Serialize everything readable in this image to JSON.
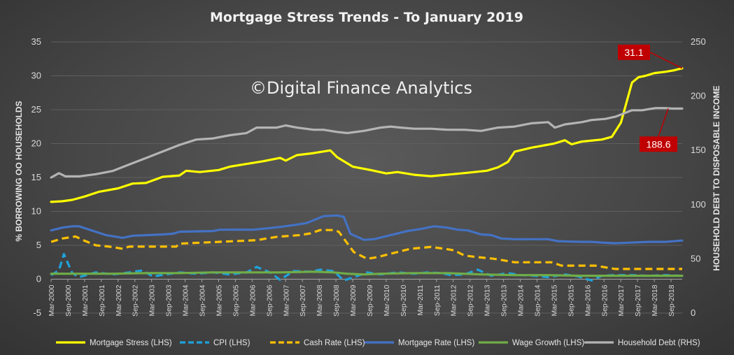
{
  "chart_data": {
    "type": "line",
    "title": "Mortgage Stress Trends - To January 2019",
    "watermark": "©Digital Finance Analytics",
    "ylabel_left": "% BORROWING OO HOUSEHOLDS",
    "ylabel_right": "HOUSEHOLD DEBT TO DISPOSABLE INCOME",
    "ylim_left": [
      -5,
      35
    ],
    "ylim_right": [
      0,
      250
    ],
    "yticks_left": [
      -5,
      0,
      5,
      10,
      15,
      20,
      25,
      30,
      35
    ],
    "yticks_right": [
      0,
      50,
      100,
      150,
      200,
      250
    ],
    "x_start": 2000.167,
    "x_end": 2019.0,
    "x_ticks": [
      "Mar-2000",
      "Sep-2000",
      "Mar-2001",
      "Sep-2001",
      "Mar-2002",
      "Sep-2002",
      "Mar-2003",
      "Sep-2003",
      "Mar-2004",
      "Sep-2004",
      "Mar-2005",
      "Sep-2005",
      "Mar-2006",
      "Sep-2006",
      "Mar-2007",
      "Sep-2007",
      "Mar-2008",
      "Sep-2008",
      "Mar-2009",
      "Sep-2009",
      "Mar-2010",
      "Sep-2010",
      "Mar-2011",
      "Sep-2011",
      "Mar-2012",
      "Sep-2012",
      "Mar-2013",
      "Sep-2013",
      "Mar-2014",
      "Sep-2014",
      "Mar-2015",
      "Sep-2015",
      "Mar-2016",
      "Sep-2016",
      "Mar-2017",
      "Sep-2017",
      "Mar-2018",
      "Sep-2018"
    ],
    "grid": true,
    "legend_position": "bottom",
    "series": [
      {
        "name": "Mortgage Stress (LHS)",
        "axis": "left",
        "color": "#ffff00",
        "dash": "solid",
        "x": [
          2000.17,
          2000.5,
          2000.8,
          2001.17,
          2001.6,
          2002.17,
          2002.6,
          2003.0,
          2003.5,
          2004.0,
          2004.2,
          2004.6,
          2005.17,
          2005.5,
          2006.0,
          2006.5,
          2007.0,
          2007.17,
          2007.5,
          2008.0,
          2008.5,
          2008.7,
          2009.17,
          2009.7,
          2010.17,
          2010.5,
          2011.0,
          2011.5,
          2012.17,
          2012.6,
          2013.17,
          2013.5,
          2013.8,
          2014.0,
          2014.5,
          2015.17,
          2015.5,
          2015.7,
          2016.0,
          2016.6,
          2016.9,
          2017.17,
          2017.5,
          2017.7,
          2017.9,
          2018.17,
          2018.5,
          2018.75,
          2018.9,
          2019.0
        ],
        "values": [
          11.4,
          11.5,
          11.7,
          12.2,
          12.9,
          13.4,
          14.1,
          14.2,
          15.1,
          15.3,
          16.0,
          15.8,
          16.1,
          16.6,
          17.0,
          17.4,
          17.9,
          17.5,
          18.3,
          18.6,
          19.0,
          18.0,
          16.6,
          16.1,
          15.6,
          15.8,
          15.4,
          15.2,
          15.5,
          15.7,
          16.0,
          16.5,
          17.3,
          18.8,
          19.4,
          20.0,
          20.5,
          19.9,
          20.3,
          20.6,
          21.0,
          23.1,
          29.0,
          29.8,
          30.0,
          30.4,
          30.6,
          30.8,
          31.0,
          31.1
        ]
      },
      {
        "name": "CPI (LHS)",
        "axis": "left",
        "color": "#1fa2dc",
        "dash": "dash",
        "x": [
          2000.17,
          2000.4,
          2000.55,
          2000.8,
          2001.0,
          2001.5,
          2002.0,
          2002.5,
          2002.9,
          2003.2,
          2003.6,
          2004.0,
          2004.5,
          2005.0,
          2005.5,
          2006.0,
          2006.3,
          2006.7,
          2007.0,
          2007.4,
          2007.9,
          2008.2,
          2008.6,
          2008.9,
          2009.2,
          2009.6,
          2010.0,
          2010.5,
          2011.0,
          2011.4,
          2011.8,
          2012.1,
          2012.5,
          2012.9,
          2013.3,
          2013.8,
          2014.2,
          2014.6,
          2015.0,
          2015.5,
          2015.9,
          2016.3,
          2016.6,
          2017.0,
          2017.5,
          2018.0,
          2018.5,
          2019.0
        ],
        "values": [
          0.6,
          1.3,
          3.7,
          0.9,
          0.3,
          1.0,
          0.7,
          1.0,
          1.3,
          0.4,
          0.7,
          1.0,
          0.8,
          1.0,
          0.7,
          1.0,
          1.8,
          1.0,
          -0.1,
          1.2,
          1.1,
          1.4,
          1.2,
          -0.2,
          0.3,
          1.0,
          0.7,
          1.0,
          0.8,
          1.0,
          0.9,
          0.6,
          0.7,
          1.4,
          0.5,
          0.9,
          0.6,
          0.5,
          0.3,
          0.7,
          0.4,
          -0.2,
          0.5,
          0.6,
          0.6,
          0.5,
          0.6,
          0.5
        ]
      },
      {
        "name": "Cash Rate (LHS)",
        "axis": "left",
        "color": "#ffc000",
        "dash": "dash",
        "x": [
          2000.17,
          2000.5,
          2000.9,
          2001.1,
          2001.5,
          2001.9,
          2002.3,
          2002.5,
          2003.0,
          2003.9,
          2004.0,
          2005.17,
          2006.3,
          2006.9,
          2007.6,
          2007.9,
          2008.2,
          2008.6,
          2008.75,
          2008.9,
          2009.2,
          2009.6,
          2009.9,
          2010.3,
          2010.9,
          2011.5,
          2011.9,
          2012.2,
          2012.5,
          2012.9,
          2013.4,
          2013.7,
          2014.0,
          2015.1,
          2015.4,
          2016.4,
          2016.7,
          2017.0,
          2019.0
        ],
        "values": [
          5.5,
          6.0,
          6.3,
          5.8,
          5.0,
          4.8,
          4.5,
          4.8,
          4.8,
          4.8,
          5.25,
          5.5,
          5.75,
          6.25,
          6.5,
          6.75,
          7.25,
          7.25,
          7.0,
          6.0,
          4.0,
          3.0,
          3.25,
          3.75,
          4.5,
          4.75,
          4.5,
          4.25,
          3.5,
          3.25,
          3.0,
          2.75,
          2.5,
          2.5,
          2.0,
          2.0,
          1.75,
          1.5,
          1.5
        ]
      },
      {
        "name": "Mortgage Rate (LHS)",
        "axis": "left",
        "color": "#4472c4",
        "dash": "solid",
        "x": [
          2000.17,
          2000.5,
          2000.8,
          2001.0,
          2001.5,
          2001.8,
          2002.3,
          2002.6,
          2003.5,
          2003.8,
          2004.0,
          2005.0,
          2005.2,
          2006.2,
          2006.6,
          2007.0,
          2007.5,
          2007.8,
          2008.0,
          2008.3,
          2008.7,
          2008.9,
          2009.1,
          2009.5,
          2009.8,
          2010.3,
          2010.8,
          2011.2,
          2011.6,
          2012.0,
          2012.3,
          2012.6,
          2013.0,
          2013.3,
          2013.6,
          2014.0,
          2015.0,
          2015.3,
          2016.0,
          2016.3,
          2016.6,
          2017.0,
          2017.5,
          2018.0,
          2018.5,
          2019.0
        ],
        "values": [
          7.2,
          7.6,
          7.8,
          7.8,
          7.0,
          6.5,
          6.1,
          6.4,
          6.6,
          6.7,
          7.0,
          7.1,
          7.3,
          7.3,
          7.5,
          7.7,
          8.05,
          8.3,
          8.7,
          9.3,
          9.4,
          9.2,
          6.7,
          5.8,
          5.9,
          6.5,
          7.1,
          7.4,
          7.8,
          7.6,
          7.3,
          7.2,
          6.6,
          6.5,
          6.0,
          5.9,
          5.9,
          5.6,
          5.5,
          5.5,
          5.4,
          5.3,
          5.4,
          5.5,
          5.5,
          5.7
        ]
      },
      {
        "name": "Wage Growth (LHS)",
        "axis": "left",
        "color": "#70ad47",
        "dash": "solid",
        "x": [
          2000.17,
          2001.0,
          2002.0,
          2003.0,
          2004.0,
          2005.0,
          2006.0,
          2007.0,
          2008.0,
          2008.6,
          2009.0,
          2009.5,
          2010.0,
          2011.0,
          2012.0,
          2013.0,
          2014.0,
          2015.0,
          2016.0,
          2017.0,
          2018.0,
          2019.0
        ],
        "values": [
          0.8,
          0.8,
          0.8,
          0.9,
          0.9,
          1.0,
          1.0,
          1.0,
          1.1,
          1.0,
          0.8,
          0.7,
          0.8,
          0.9,
          0.9,
          0.7,
          0.6,
          0.6,
          0.5,
          0.5,
          0.5,
          0.5
        ]
      },
      {
        "name": "Household Debt (RHS)",
        "axis": "right",
        "color": "#b4b4b4",
        "dash": "solid",
        "x": [
          2000.17,
          2000.4,
          2000.6,
          2001.0,
          2001.5,
          2002.0,
          2002.5,
          2003.0,
          2003.5,
          2004.0,
          2004.5,
          2005.0,
          2005.5,
          2006.0,
          2006.3,
          2006.9,
          2007.17,
          2007.5,
          2008.0,
          2008.3,
          2008.7,
          2009.0,
          2009.5,
          2010.0,
          2010.3,
          2010.6,
          2011.0,
          2011.5,
          2012.0,
          2012.5,
          2013.0,
          2013.5,
          2014.0,
          2014.5,
          2015.0,
          2015.2,
          2015.5,
          2016.0,
          2016.3,
          2016.7,
          2017.0,
          2017.5,
          2017.8,
          2018.0,
          2018.2,
          2018.5,
          2018.7,
          2019.0
        ],
        "values": [
          125,
          129,
          126,
          126,
          128,
          131,
          137,
          143,
          149,
          155,
          160,
          161,
          164,
          166,
          171,
          171,
          173,
          171,
          169,
          169,
          167,
          166,
          168,
          171,
          172,
          171,
          170,
          170,
          169,
          169,
          168,
          171,
          172,
          175,
          176,
          171,
          174,
          176,
          178,
          179,
          181,
          187,
          187,
          188,
          189,
          189,
          188.6,
          188.6
        ]
      }
    ],
    "callouts": [
      {
        "text": "31.1",
        "series": "Mortgage Stress (LHS)"
      },
      {
        "text": "188.6",
        "series": "Household Debt (RHS)"
      }
    ]
  }
}
